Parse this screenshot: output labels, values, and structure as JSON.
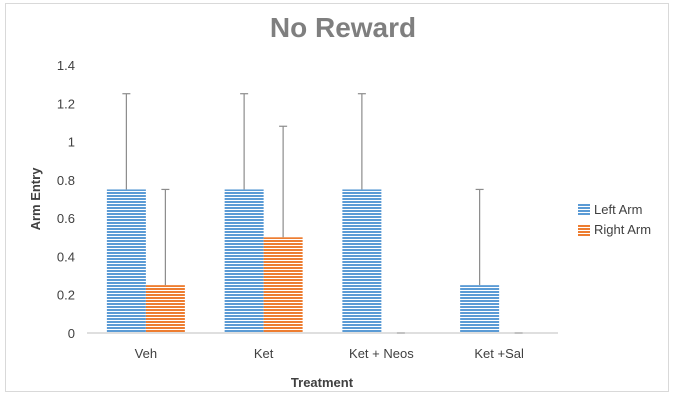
{
  "chart_data": {
    "type": "bar",
    "title": "No Reward",
    "xlabel": "Treatment",
    "ylabel": "Arm Entry",
    "categories": [
      "Veh",
      "Ket",
      "Ket + Neos",
      "Ket +Sal"
    ],
    "series": [
      {
        "name": "Left Arm",
        "color": "#5b9bd5",
        "values": [
          0.75,
          0.75,
          0.75,
          0.25
        ],
        "error_upper": [
          1.25,
          1.25,
          1.25,
          0.75
        ]
      },
      {
        "name": "Right Arm",
        "color": "#ed7d31",
        "values": [
          0.25,
          0.5,
          0,
          0
        ],
        "error_upper": [
          0.75,
          1.08,
          0,
          0
        ]
      }
    ],
    "ylim": [
      0,
      1.4
    ],
    "yticks": [
      0,
      0.2,
      0.4,
      0.6,
      0.8,
      1,
      1.2,
      1.4
    ],
    "ytick_labels": [
      "0",
      "0.2",
      "0.4",
      "0.6",
      "0.8",
      "1",
      "1.2",
      "1.4"
    ],
    "grid": false,
    "legend_position": "right",
    "bar_pattern": "horizontal-stripes"
  }
}
